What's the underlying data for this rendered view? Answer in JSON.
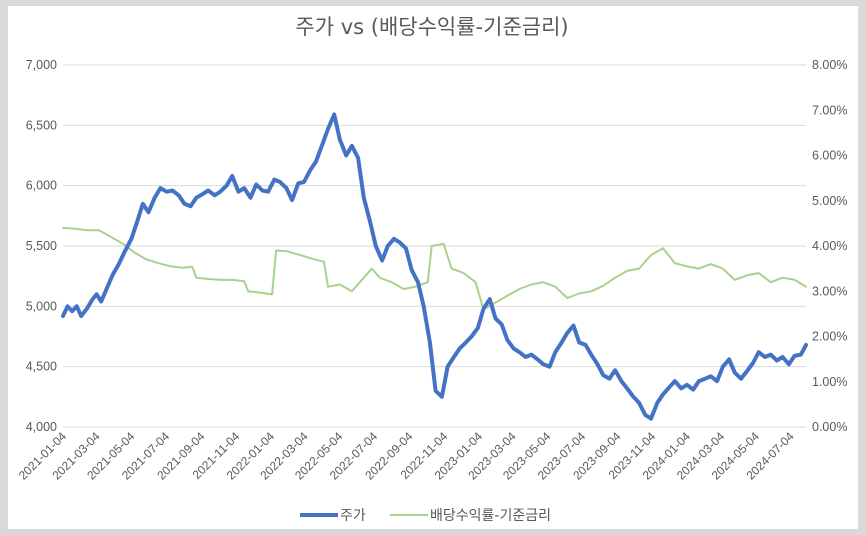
{
  "chart_data": {
    "type": "line",
    "title": "주가 vs (배당수익률-기준금리)",
    "grid": true,
    "legend_position": "bottom",
    "y_left": {
      "min": 4000,
      "max": 7000,
      "ticks": [
        "4,000",
        "4,500",
        "5,000",
        "5,500",
        "6,000",
        "6,500",
        "7,000"
      ],
      "tick_values": [
        4000,
        4500,
        5000,
        5500,
        6000,
        6500,
        7000
      ]
    },
    "y_right": {
      "min": 0,
      "max": 8,
      "ticks": [
        "0.00%",
        "1.00%",
        "2.00%",
        "3.00%",
        "4.00%",
        "5.00%",
        "6.00%",
        "7.00%",
        "8.00%"
      ],
      "tick_values": [
        0,
        1,
        2,
        3,
        4,
        5,
        6,
        7,
        8
      ]
    },
    "x_axis": {
      "start": "2021-01-04",
      "end": "2024-07-31",
      "ticks": [
        "2021-01-04",
        "2021-03-04",
        "2021-05-04",
        "2021-07-04",
        "2021-09-04",
        "2021-11-04",
        "2022-01-04",
        "2022-03-04",
        "2022-05-04",
        "2022-07-04",
        "2022-09-04",
        "2022-11-04",
        "2023-01-04",
        "2023-03-04",
        "2023-05-04",
        "2023-07-04",
        "2023-09-04",
        "2023-11-04",
        "2024-01-04",
        "2024-03-04",
        "2024-05-04",
        "2024-07-04"
      ]
    },
    "series": [
      {
        "name": "주가",
        "axis": "left",
        "color": "#4472c4",
        "points": [
          [
            "2021-01-04",
            4920
          ],
          [
            "2021-01-12",
            5000
          ],
          [
            "2021-01-20",
            4960
          ],
          [
            "2021-01-28",
            5000
          ],
          [
            "2021-02-05",
            4920
          ],
          [
            "2021-02-15",
            4980
          ],
          [
            "2021-02-25",
            5060
          ],
          [
            "2021-03-04",
            5100
          ],
          [
            "2021-03-12",
            5040
          ],
          [
            "2021-03-22",
            5150
          ],
          [
            "2021-04-01",
            5260
          ],
          [
            "2021-04-12",
            5350
          ],
          [
            "2021-04-22",
            5450
          ],
          [
            "2021-05-04",
            5560
          ],
          [
            "2021-05-14",
            5700
          ],
          [
            "2021-05-24",
            5850
          ],
          [
            "2021-06-03",
            5780
          ],
          [
            "2021-06-14",
            5900
          ],
          [
            "2021-06-24",
            5980
          ],
          [
            "2021-07-05",
            5950
          ],
          [
            "2021-07-15",
            5960
          ],
          [
            "2021-07-26",
            5920
          ],
          [
            "2021-08-05",
            5850
          ],
          [
            "2021-08-16",
            5830
          ],
          [
            "2021-08-26",
            5900
          ],
          [
            "2021-09-06",
            5930
          ],
          [
            "2021-09-16",
            5960
          ],
          [
            "2021-09-27",
            5920
          ],
          [
            "2021-10-07",
            5950
          ],
          [
            "2021-10-18",
            6000
          ],
          [
            "2021-10-28",
            6080
          ],
          [
            "2021-11-08",
            5950
          ],
          [
            "2021-11-18",
            5980
          ],
          [
            "2021-11-29",
            5900
          ],
          [
            "2021-12-09",
            6010
          ],
          [
            "2021-12-20",
            5960
          ],
          [
            "2021-12-30",
            5950
          ],
          [
            "2022-01-10",
            6050
          ],
          [
            "2022-01-20",
            6030
          ],
          [
            "2022-01-31",
            5980
          ],
          [
            "2022-02-10",
            5880
          ],
          [
            "2022-02-21",
            6020
          ],
          [
            "2022-03-03",
            6030
          ],
          [
            "2022-03-14",
            6130
          ],
          [
            "2022-03-24",
            6200
          ],
          [
            "2022-04-04",
            6340
          ],
          [
            "2022-04-14",
            6470
          ],
          [
            "2022-04-25",
            6590
          ],
          [
            "2022-05-05",
            6380
          ],
          [
            "2022-05-16",
            6250
          ],
          [
            "2022-05-26",
            6330
          ],
          [
            "2022-06-06",
            6230
          ],
          [
            "2022-06-16",
            5900
          ],
          [
            "2022-06-27",
            5700
          ],
          [
            "2022-07-07",
            5500
          ],
          [
            "2022-07-18",
            5380
          ],
          [
            "2022-07-28",
            5500
          ],
          [
            "2022-08-08",
            5560
          ],
          [
            "2022-08-18",
            5530
          ],
          [
            "2022-08-29",
            5480
          ],
          [
            "2022-09-08",
            5300
          ],
          [
            "2022-09-19",
            5200
          ],
          [
            "2022-09-29",
            5000
          ],
          [
            "2022-10-10",
            4700
          ],
          [
            "2022-10-20",
            4300
          ],
          [
            "2022-10-31",
            4250
          ],
          [
            "2022-11-10",
            4500
          ],
          [
            "2022-11-21",
            4580
          ],
          [
            "2022-12-01",
            4650
          ],
          [
            "2022-12-12",
            4700
          ],
          [
            "2022-12-22",
            4750
          ],
          [
            "2023-01-02",
            4820
          ],
          [
            "2023-01-12",
            4980
          ],
          [
            "2023-01-23",
            5060
          ],
          [
            "2023-02-02",
            4900
          ],
          [
            "2023-02-13",
            4850
          ],
          [
            "2023-02-23",
            4720
          ],
          [
            "2023-03-06",
            4650
          ],
          [
            "2023-03-16",
            4620
          ],
          [
            "2023-03-27",
            4580
          ],
          [
            "2023-04-06",
            4600
          ],
          [
            "2023-04-17",
            4560
          ],
          [
            "2023-04-27",
            4520
          ],
          [
            "2023-05-08",
            4500
          ],
          [
            "2023-05-18",
            4620
          ],
          [
            "2023-05-29",
            4700
          ],
          [
            "2023-06-08",
            4780
          ],
          [
            "2023-06-19",
            4840
          ],
          [
            "2023-06-29",
            4700
          ],
          [
            "2023-07-10",
            4680
          ],
          [
            "2023-07-20",
            4600
          ],
          [
            "2023-07-31",
            4520
          ],
          [
            "2023-08-10",
            4430
          ],
          [
            "2023-08-21",
            4400
          ],
          [
            "2023-08-31",
            4470
          ],
          [
            "2023-09-11",
            4380
          ],
          [
            "2023-09-21",
            4320
          ],
          [
            "2023-10-02",
            4250
          ],
          [
            "2023-10-12",
            4200
          ],
          [
            "2023-10-23",
            4100
          ],
          [
            "2023-11-02",
            4070
          ],
          [
            "2023-11-13",
            4200
          ],
          [
            "2023-11-23",
            4270
          ],
          [
            "2023-12-04",
            4330
          ],
          [
            "2023-12-14",
            4380
          ],
          [
            "2023-12-25",
            4320
          ],
          [
            "2024-01-04",
            4350
          ],
          [
            "2024-01-15",
            4310
          ],
          [
            "2024-01-25",
            4380
          ],
          [
            "2024-02-05",
            4400
          ],
          [
            "2024-02-15",
            4420
          ],
          [
            "2024-02-26",
            4380
          ],
          [
            "2024-03-07",
            4500
          ],
          [
            "2024-03-18",
            4560
          ],
          [
            "2024-03-28",
            4450
          ],
          [
            "2024-04-08",
            4400
          ],
          [
            "2024-04-18",
            4460
          ],
          [
            "2024-04-29",
            4530
          ],
          [
            "2024-05-09",
            4620
          ],
          [
            "2024-05-20",
            4580
          ],
          [
            "2024-05-30",
            4600
          ],
          [
            "2024-06-10",
            4550
          ],
          [
            "2024-06-20",
            4580
          ],
          [
            "2024-07-01",
            4520
          ],
          [
            "2024-07-11",
            4590
          ],
          [
            "2024-07-22",
            4600
          ],
          [
            "2024-07-31",
            4680
          ]
        ]
      },
      {
        "name": "배당수익률-기준금리",
        "axis": "right",
        "color": "#a9d18e",
        "points": [
          [
            "2021-01-04",
            4.4
          ],
          [
            "2021-01-25",
            4.38
          ],
          [
            "2021-02-15",
            4.35
          ],
          [
            "2021-03-08",
            4.35
          ],
          [
            "2021-03-29",
            4.2
          ],
          [
            "2021-04-19",
            4.05
          ],
          [
            "2021-05-10",
            3.85
          ],
          [
            "2021-05-31",
            3.7
          ],
          [
            "2021-06-21",
            3.62
          ],
          [
            "2021-07-12",
            3.55
          ],
          [
            "2021-08-02",
            3.52
          ],
          [
            "2021-08-19",
            3.54
          ],
          [
            "2021-08-26",
            3.3
          ],
          [
            "2021-09-16",
            3.27
          ],
          [
            "2021-10-07",
            3.25
          ],
          [
            "2021-10-28",
            3.25
          ],
          [
            "2021-11-18",
            3.22
          ],
          [
            "2021-11-25",
            3.0
          ],
          [
            "2021-12-16",
            2.97
          ],
          [
            "2022-01-06",
            2.93
          ],
          [
            "2022-01-13",
            3.9
          ],
          [
            "2022-02-03",
            3.88
          ],
          [
            "2022-02-24",
            3.8
          ],
          [
            "2022-03-17",
            3.72
          ],
          [
            "2022-04-07",
            3.65
          ],
          [
            "2022-04-14",
            3.1
          ],
          [
            "2022-05-05",
            3.15
          ],
          [
            "2022-05-26",
            3.0
          ],
          [
            "2022-06-16",
            3.3
          ],
          [
            "2022-06-30",
            3.5
          ],
          [
            "2022-07-14",
            3.3
          ],
          [
            "2022-08-04",
            3.2
          ],
          [
            "2022-08-25",
            3.05
          ],
          [
            "2022-09-15",
            3.1
          ],
          [
            "2022-10-06",
            3.2
          ],
          [
            "2022-10-13",
            4.0
          ],
          [
            "2022-11-03",
            4.05
          ],
          [
            "2022-11-17",
            3.5
          ],
          [
            "2022-12-08",
            3.4
          ],
          [
            "2022-12-29",
            3.2
          ],
          [
            "2023-01-12",
            2.6
          ],
          [
            "2023-02-02",
            2.75
          ],
          [
            "2023-02-23",
            2.9
          ],
          [
            "2023-03-16",
            3.05
          ],
          [
            "2023-04-06",
            3.15
          ],
          [
            "2023-04-27",
            3.2
          ],
          [
            "2023-05-18",
            3.1
          ],
          [
            "2023-06-08",
            2.85
          ],
          [
            "2023-06-29",
            2.95
          ],
          [
            "2023-07-20",
            3.0
          ],
          [
            "2023-08-10",
            3.12
          ],
          [
            "2023-08-31",
            3.3
          ],
          [
            "2023-09-21",
            3.45
          ],
          [
            "2023-10-12",
            3.5
          ],
          [
            "2023-11-02",
            3.8
          ],
          [
            "2023-11-23",
            3.95
          ],
          [
            "2023-12-14",
            3.62
          ],
          [
            "2024-01-04",
            3.55
          ],
          [
            "2024-01-25",
            3.5
          ],
          [
            "2024-02-15",
            3.6
          ],
          [
            "2024-03-07",
            3.5
          ],
          [
            "2024-03-28",
            3.25
          ],
          [
            "2024-04-18",
            3.35
          ],
          [
            "2024-05-09",
            3.4
          ],
          [
            "2024-05-30",
            3.2
          ],
          [
            "2024-06-20",
            3.3
          ],
          [
            "2024-07-11",
            3.25
          ],
          [
            "2024-07-31",
            3.1
          ]
        ]
      }
    ]
  }
}
